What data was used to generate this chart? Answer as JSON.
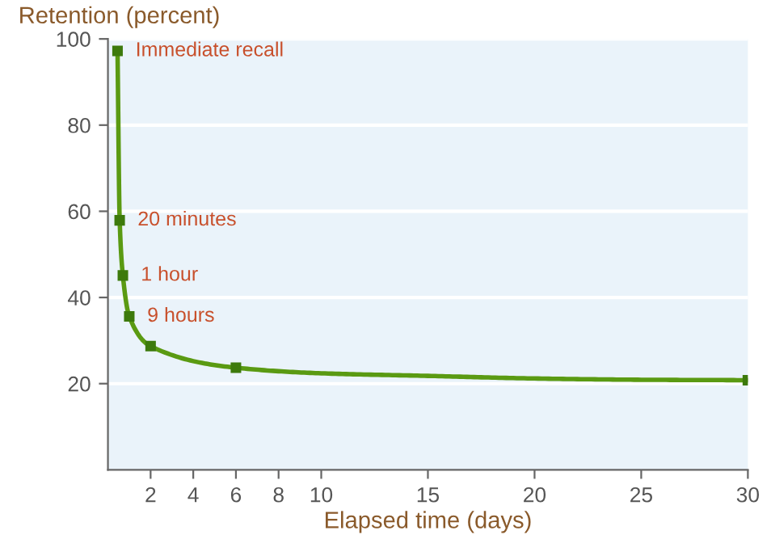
{
  "chart_data": {
    "type": "line",
    "ylabel": "Retention (percent)",
    "xlabel": "Elapsed time (days)",
    "xlim": [
      0,
      30
    ],
    "xticks": [
      2,
      4,
      6,
      8,
      10,
      15,
      20,
      25,
      30
    ],
    "ylim": [
      0,
      100
    ],
    "yticks": [
      20,
      40,
      60,
      80,
      100
    ],
    "grid": "y",
    "legend": false,
    "series": [
      {
        "color": "#5a9a12",
        "marker": "none",
        "x": [
          0.45,
          0.55,
          0.7,
          1.0,
          2,
          6,
          10,
          15,
          20,
          25,
          30
        ],
        "values": [
          97.2,
          57.9,
          45.1,
          35.6,
          28.7,
          23.7,
          22.4,
          21.8,
          21.2,
          20.9,
          20.8
        ]
      },
      {
        "type": "scatter",
        "color": "#3d7a0c",
        "marker": "square",
        "x": [
          0.45,
          0.55,
          0.7,
          1.0,
          2,
          6,
          30
        ],
        "values": [
          97.2,
          57.9,
          45.1,
          35.6,
          28.7,
          23.7,
          20.8
        ]
      }
    ],
    "annotations": [
      {
        "text": "Immediate recall",
        "x": 0.45,
        "y": 97.2
      },
      {
        "text": "20 minutes",
        "x": 0.55,
        "y": 57.9
      },
      {
        "text": "1 hour",
        "x": 0.7,
        "y": 45.1
      },
      {
        "text": "9 hours",
        "x": 1.0,
        "y": 35.6
      }
    ]
  }
}
